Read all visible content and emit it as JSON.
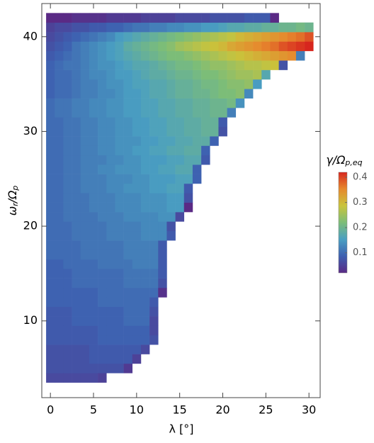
{
  "chart_data": {
    "type": "heatmap",
    "xlabel": "λ [°]",
    "ylabel": [
      "ω",
      "r",
      "/Ω",
      "p"
    ],
    "colorbar_label": [
      "γ/Ω",
      "p,eq"
    ],
    "xlim": [
      -1,
      31.3
    ],
    "xticks": [
      0,
      5,
      10,
      15,
      20,
      25,
      30
    ],
    "ylim": [
      1.9,
      43.5
    ],
    "yticks": [
      10,
      20,
      30,
      40
    ],
    "clim": [
      0.02,
      0.42
    ],
    "cticks": [
      0.1,
      0.2,
      0.3,
      0.4
    ],
    "colormap": [
      "#5a2a85",
      "#3d5fb0",
      "#4a9fc2",
      "#7cbd78",
      "#c9c43c",
      "#e6892d",
      "#d7261e"
    ],
    "x": [
      0,
      1,
      2,
      3,
      4,
      5,
      6,
      7,
      8,
      9,
      10,
      11,
      12,
      13,
      14,
      15,
      16,
      17,
      18,
      19,
      20,
      21,
      22,
      23,
      24,
      25,
      26,
      27,
      28,
      29,
      30
    ],
    "y": [
      4,
      5,
      6,
      7,
      8,
      9,
      10,
      11,
      12,
      13,
      14,
      15,
      16,
      17,
      18,
      19,
      20,
      21,
      22,
      23,
      24,
      25,
      26,
      27,
      28,
      29,
      30,
      31,
      32,
      33,
      34,
      35,
      36,
      37,
      38,
      39,
      40,
      41,
      42
    ],
    "z": [
      [
        0.06,
        0.06,
        0.06,
        0.06,
        0.06,
        0.06,
        0.05,
        null,
        null,
        null,
        null,
        null,
        null,
        null,
        null,
        null,
        null,
        null,
        null,
        null,
        null,
        null,
        null,
        null,
        null,
        null,
        null,
        null,
        null,
        null,
        null
      ],
      [
        0.07,
        0.07,
        0.07,
        0.07,
        0.07,
        0.07,
        0.07,
        0.07,
        0.07,
        0.04,
        null,
        null,
        null,
        null,
        null,
        null,
        null,
        null,
        null,
        null,
        null,
        null,
        null,
        null,
        null,
        null,
        null,
        null,
        null,
        null,
        null
      ],
      [
        0.07,
        0.07,
        0.07,
        0.07,
        0.07,
        0.08,
        0.08,
        0.08,
        0.08,
        0.08,
        0.05,
        null,
        null,
        null,
        null,
        null,
        null,
        null,
        null,
        null,
        null,
        null,
        null,
        null,
        null,
        null,
        null,
        null,
        null,
        null,
        null
      ],
      [
        0.07,
        0.07,
        0.07,
        0.07,
        0.07,
        0.08,
        0.08,
        0.08,
        0.08,
        0.08,
        0.08,
        0.06,
        null,
        null,
        null,
        null,
        null,
        null,
        null,
        null,
        null,
        null,
        null,
        null,
        null,
        null,
        null,
        null,
        null,
        null,
        null
      ],
      [
        0.08,
        0.08,
        0.08,
        0.08,
        0.08,
        0.08,
        0.09,
        0.09,
        0.09,
        0.09,
        0.09,
        0.09,
        0.07,
        null,
        null,
        null,
        null,
        null,
        null,
        null,
        null,
        null,
        null,
        null,
        null,
        null,
        null,
        null,
        null,
        null,
        null
      ],
      [
        0.08,
        0.08,
        0.08,
        0.08,
        0.08,
        0.08,
        0.09,
        0.09,
        0.09,
        0.09,
        0.09,
        0.09,
        0.06,
        null,
        null,
        null,
        null,
        null,
        null,
        null,
        null,
        null,
        null,
        null,
        null,
        null,
        null,
        null,
        null,
        null,
        null
      ],
      [
        0.08,
        0.08,
        0.08,
        0.09,
        0.09,
        0.09,
        0.09,
        0.09,
        0.09,
        0.1,
        0.1,
        0.1,
        0.06,
        null,
        null,
        null,
        null,
        null,
        null,
        null,
        null,
        null,
        null,
        null,
        null,
        null,
        null,
        null,
        null,
        null,
        null
      ],
      [
        0.08,
        0.08,
        0.08,
        0.09,
        0.09,
        0.09,
        0.09,
        0.09,
        0.09,
        0.1,
        0.1,
        0.1,
        0.07,
        null,
        null,
        null,
        null,
        null,
        null,
        null,
        null,
        null,
        null,
        null,
        null,
        null,
        null,
        null,
        null,
        null,
        null
      ],
      [
        0.09,
        0.09,
        0.09,
        0.09,
        0.09,
        0.09,
        0.1,
        0.1,
        0.1,
        0.1,
        0.1,
        0.1,
        0.08,
        null,
        null,
        null,
        null,
        null,
        null,
        null,
        null,
        null,
        null,
        null,
        null,
        null,
        null,
        null,
        null,
        null,
        null
      ],
      [
        0.09,
        0.09,
        0.09,
        0.09,
        0.09,
        0.09,
        0.1,
        0.1,
        0.1,
        0.1,
        0.1,
        0.1,
        0.1,
        0.03,
        null,
        null,
        null,
        null,
        null,
        null,
        null,
        null,
        null,
        null,
        null,
        null,
        null,
        null,
        null,
        null,
        null
      ],
      [
        0.09,
        0.09,
        0.09,
        0.1,
        0.1,
        0.1,
        0.1,
        0.1,
        0.1,
        0.11,
        0.11,
        0.11,
        0.11,
        0.07,
        null,
        null,
        null,
        null,
        null,
        null,
        null,
        null,
        null,
        null,
        null,
        null,
        null,
        null,
        null,
        null,
        null
      ],
      [
        0.09,
        0.09,
        0.09,
        0.1,
        0.1,
        0.1,
        0.1,
        0.1,
        0.1,
        0.11,
        0.11,
        0.11,
        0.11,
        0.08,
        null,
        null,
        null,
        null,
        null,
        null,
        null,
        null,
        null,
        null,
        null,
        null,
        null,
        null,
        null,
        null,
        null
      ],
      [
        0.09,
        0.09,
        0.1,
        0.1,
        0.1,
        0.1,
        0.11,
        0.11,
        0.11,
        0.11,
        0.12,
        0.12,
        0.12,
        0.08,
        null,
        null,
        null,
        null,
        null,
        null,
        null,
        null,
        null,
        null,
        null,
        null,
        null,
        null,
        null,
        null,
        null
      ],
      [
        0.1,
        0.1,
        0.1,
        0.1,
        0.11,
        0.11,
        0.11,
        0.11,
        0.11,
        0.12,
        0.12,
        0.12,
        0.12,
        0.08,
        null,
        null,
        null,
        null,
        null,
        null,
        null,
        null,
        null,
        null,
        null,
        null,
        null,
        null,
        null,
        null,
        null
      ],
      [
        0.1,
        0.1,
        0.1,
        0.1,
        0.11,
        0.11,
        0.11,
        0.11,
        0.11,
        0.12,
        0.12,
        0.12,
        0.12,
        0.08,
        null,
        null,
        null,
        null,
        null,
        null,
        null,
        null,
        null,
        null,
        null,
        null,
        null,
        null,
        null,
        null,
        null
      ],
      [
        0.1,
        0.1,
        0.1,
        0.11,
        0.11,
        0.11,
        0.11,
        0.12,
        0.12,
        0.12,
        0.12,
        0.13,
        0.13,
        0.13,
        0.08,
        null,
        null,
        null,
        null,
        null,
        null,
        null,
        null,
        null,
        null,
        null,
        null,
        null,
        null,
        null,
        null
      ],
      [
        0.1,
        0.1,
        0.1,
        0.11,
        0.11,
        0.11,
        0.11,
        0.12,
        0.12,
        0.12,
        0.12,
        0.13,
        0.13,
        0.13,
        0.07,
        null,
        null,
        null,
        null,
        null,
        null,
        null,
        null,
        null,
        null,
        null,
        null,
        null,
        null,
        null,
        null
      ],
      [
        0.1,
        0.1,
        0.11,
        0.11,
        0.11,
        0.11,
        0.12,
        0.12,
        0.12,
        0.13,
        0.13,
        0.13,
        0.13,
        0.14,
        0.14,
        0.06,
        null,
        null,
        null,
        null,
        null,
        null,
        null,
        null,
        null,
        null,
        null,
        null,
        null,
        null,
        null
      ],
      [
        0.1,
        0.1,
        0.11,
        0.11,
        0.11,
        0.12,
        0.12,
        0.12,
        0.13,
        0.13,
        0.13,
        0.14,
        0.14,
        0.14,
        0.15,
        0.15,
        0.02,
        null,
        null,
        null,
        null,
        null,
        null,
        null,
        null,
        null,
        null,
        null,
        null,
        null,
        null
      ],
      [
        0.1,
        0.1,
        0.11,
        0.11,
        0.11,
        0.12,
        0.12,
        0.12,
        0.13,
        0.13,
        0.13,
        0.14,
        0.14,
        0.14,
        0.15,
        0.15,
        0.07,
        null,
        null,
        null,
        null,
        null,
        null,
        null,
        null,
        null,
        null,
        null,
        null,
        null,
        null
      ],
      [
        0.1,
        0.1,
        0.11,
        0.11,
        0.12,
        0.12,
        0.12,
        0.13,
        0.13,
        0.14,
        0.14,
        0.14,
        0.15,
        0.15,
        0.16,
        0.16,
        0.08,
        null,
        null,
        null,
        null,
        null,
        null,
        null,
        null,
        null,
        null,
        null,
        null,
        null,
        null
      ],
      [
        0.1,
        0.1,
        0.11,
        0.11,
        0.12,
        0.12,
        0.12,
        0.13,
        0.13,
        0.13,
        0.14,
        0.14,
        0.15,
        0.15,
        0.15,
        0.16,
        0.16,
        0.09,
        null,
        null,
        null,
        null,
        null,
        null,
        null,
        null,
        null,
        null,
        null,
        null,
        null
      ],
      [
        0.1,
        0.1,
        0.11,
        0.11,
        0.12,
        0.12,
        0.13,
        0.13,
        0.14,
        0.14,
        0.14,
        0.15,
        0.15,
        0.16,
        0.16,
        0.17,
        0.17,
        0.09,
        null,
        null,
        null,
        null,
        null,
        null,
        null,
        null,
        null,
        null,
        null,
        null,
        null
      ],
      [
        0.1,
        0.1,
        0.11,
        0.11,
        0.12,
        0.12,
        0.12,
        0.13,
        0.13,
        0.14,
        0.14,
        0.15,
        0.15,
        0.15,
        0.16,
        0.16,
        0.17,
        0.17,
        0.08,
        null,
        null,
        null,
        null,
        null,
        null,
        null,
        null,
        null,
        null,
        null,
        null
      ],
      [
        0.1,
        0.1,
        0.11,
        0.11,
        0.12,
        0.12,
        0.13,
        0.13,
        0.14,
        0.14,
        0.15,
        0.15,
        0.16,
        0.16,
        0.17,
        0.17,
        0.18,
        0.18,
        0.09,
        null,
        null,
        null,
        null,
        null,
        null,
        null,
        null,
        null,
        null,
        null,
        null
      ],
      [
        0.1,
        0.1,
        0.11,
        0.11,
        0.12,
        0.12,
        0.13,
        0.13,
        0.14,
        0.14,
        0.14,
        0.15,
        0.15,
        0.16,
        0.16,
        0.17,
        0.17,
        0.18,
        0.18,
        0.09,
        null,
        null,
        null,
        null,
        null,
        null,
        null,
        null,
        null,
        null,
        null
      ],
      [
        0.1,
        0.1,
        0.11,
        0.11,
        0.12,
        0.12,
        0.13,
        0.13,
        0.14,
        0.14,
        0.15,
        0.15,
        0.16,
        0.16,
        0.17,
        0.17,
        0.18,
        0.18,
        0.19,
        0.19,
        0.07,
        null,
        null,
        null,
        null,
        null,
        null,
        null,
        null,
        null,
        null
      ],
      [
        0.1,
        0.1,
        0.11,
        0.11,
        0.12,
        0.12,
        0.13,
        0.13,
        0.14,
        0.14,
        0.15,
        0.15,
        0.16,
        0.16,
        0.17,
        0.17,
        0.18,
        0.18,
        0.19,
        0.19,
        0.08,
        null,
        null,
        null,
        null,
        null,
        null,
        null,
        null,
        null,
        null
      ],
      [
        0.1,
        0.11,
        0.11,
        0.12,
        0.12,
        0.13,
        0.13,
        0.14,
        0.14,
        0.15,
        0.15,
        0.16,
        0.16,
        0.17,
        0.17,
        0.18,
        0.18,
        0.19,
        0.19,
        0.2,
        0.2,
        0.12,
        null,
        null,
        null,
        null,
        null,
        null,
        null,
        null,
        null
      ],
      [
        0.1,
        0.11,
        0.11,
        0.12,
        0.12,
        0.13,
        0.13,
        0.14,
        0.14,
        0.15,
        0.15,
        0.16,
        0.16,
        0.17,
        0.17,
        0.18,
        0.18,
        0.19,
        0.19,
        0.2,
        0.2,
        0.21,
        0.14,
        null,
        null,
        null,
        null,
        null,
        null,
        null,
        null
      ],
      [
        0.09,
        0.1,
        0.1,
        0.11,
        0.12,
        0.12,
        0.13,
        0.13,
        0.14,
        0.15,
        0.15,
        0.16,
        0.17,
        0.17,
        0.18,
        0.19,
        0.19,
        0.2,
        0.2,
        0.21,
        0.22,
        0.22,
        0.23,
        0.13,
        null,
        null,
        null,
        null,
        null,
        null,
        null
      ],
      [
        0.09,
        0.1,
        0.1,
        0.11,
        0.12,
        0.12,
        0.13,
        0.14,
        0.14,
        0.15,
        0.16,
        0.16,
        0.17,
        0.17,
        0.18,
        0.19,
        0.19,
        0.2,
        0.21,
        0.21,
        0.22,
        0.23,
        0.23,
        0.24,
        0.15,
        null,
        null,
        null,
        null,
        null,
        null
      ],
      [
        0.09,
        0.1,
        0.1,
        0.11,
        0.12,
        0.13,
        0.13,
        0.14,
        0.15,
        0.15,
        0.16,
        0.17,
        0.18,
        0.18,
        0.19,
        0.2,
        0.2,
        0.21,
        0.22,
        0.22,
        0.23,
        0.24,
        0.25,
        0.25,
        0.26,
        0.17,
        null,
        null,
        null,
        null,
        null
      ],
      [
        0.09,
        0.1,
        0.11,
        0.11,
        0.12,
        0.13,
        0.14,
        0.14,
        0.15,
        0.16,
        0.17,
        0.17,
        0.18,
        0.19,
        0.2,
        0.21,
        0.21,
        0.22,
        0.23,
        0.24,
        0.24,
        0.25,
        0.26,
        0.27,
        0.27,
        0.28,
        0.29,
        0.07,
        null,
        null,
        null
      ],
      [
        0.08,
        0.09,
        0.1,
        0.11,
        0.12,
        0.13,
        0.14,
        0.15,
        0.16,
        0.17,
        0.18,
        0.19,
        0.2,
        0.21,
        0.22,
        0.22,
        0.23,
        0.24,
        0.25,
        0.26,
        0.27,
        0.28,
        0.29,
        0.3,
        0.31,
        0.32,
        0.33,
        0.34,
        0.35,
        0.12,
        null
      ],
      [
        0.07,
        0.08,
        0.09,
        0.11,
        0.12,
        0.13,
        0.14,
        0.15,
        0.16,
        0.18,
        0.19,
        0.2,
        0.21,
        0.22,
        0.23,
        0.25,
        0.26,
        0.27,
        0.28,
        0.29,
        0.3,
        0.32,
        0.33,
        0.34,
        0.35,
        0.36,
        0.37,
        0.39,
        0.4,
        0.41,
        0.42
      ],
      [
        0.06,
        0.07,
        0.08,
        0.09,
        0.1,
        0.11,
        0.12,
        0.13,
        0.15,
        0.16,
        0.17,
        0.18,
        0.19,
        0.2,
        0.21,
        0.22,
        0.23,
        0.24,
        0.25,
        0.26,
        0.27,
        0.28,
        0.3,
        0.31,
        0.32,
        0.33,
        0.34,
        0.35,
        0.36,
        0.37,
        0.39
      ],
      [
        0.05,
        0.06,
        0.06,
        0.07,
        0.07,
        0.08,
        0.08,
        0.09,
        0.09,
        0.1,
        0.11,
        0.11,
        0.12,
        0.12,
        0.13,
        0.13,
        0.14,
        0.14,
        0.15,
        0.15,
        0.16,
        0.17,
        0.17,
        0.18,
        0.18,
        0.19,
        0.19,
        0.2,
        0.2,
        0.21,
        0.2
      ],
      [
        0.02,
        0.02,
        0.02,
        0.03,
        0.03,
        0.03,
        0.03,
        0.04,
        0.04,
        0.04,
        0.04,
        0.05,
        0.05,
        0.05,
        0.05,
        0.06,
        0.06,
        0.06,
        0.06,
        0.07,
        0.07,
        0.07,
        0.07,
        0.08,
        0.08,
        0.08,
        0.02,
        null,
        null,
        null,
        null
      ]
    ]
  }
}
